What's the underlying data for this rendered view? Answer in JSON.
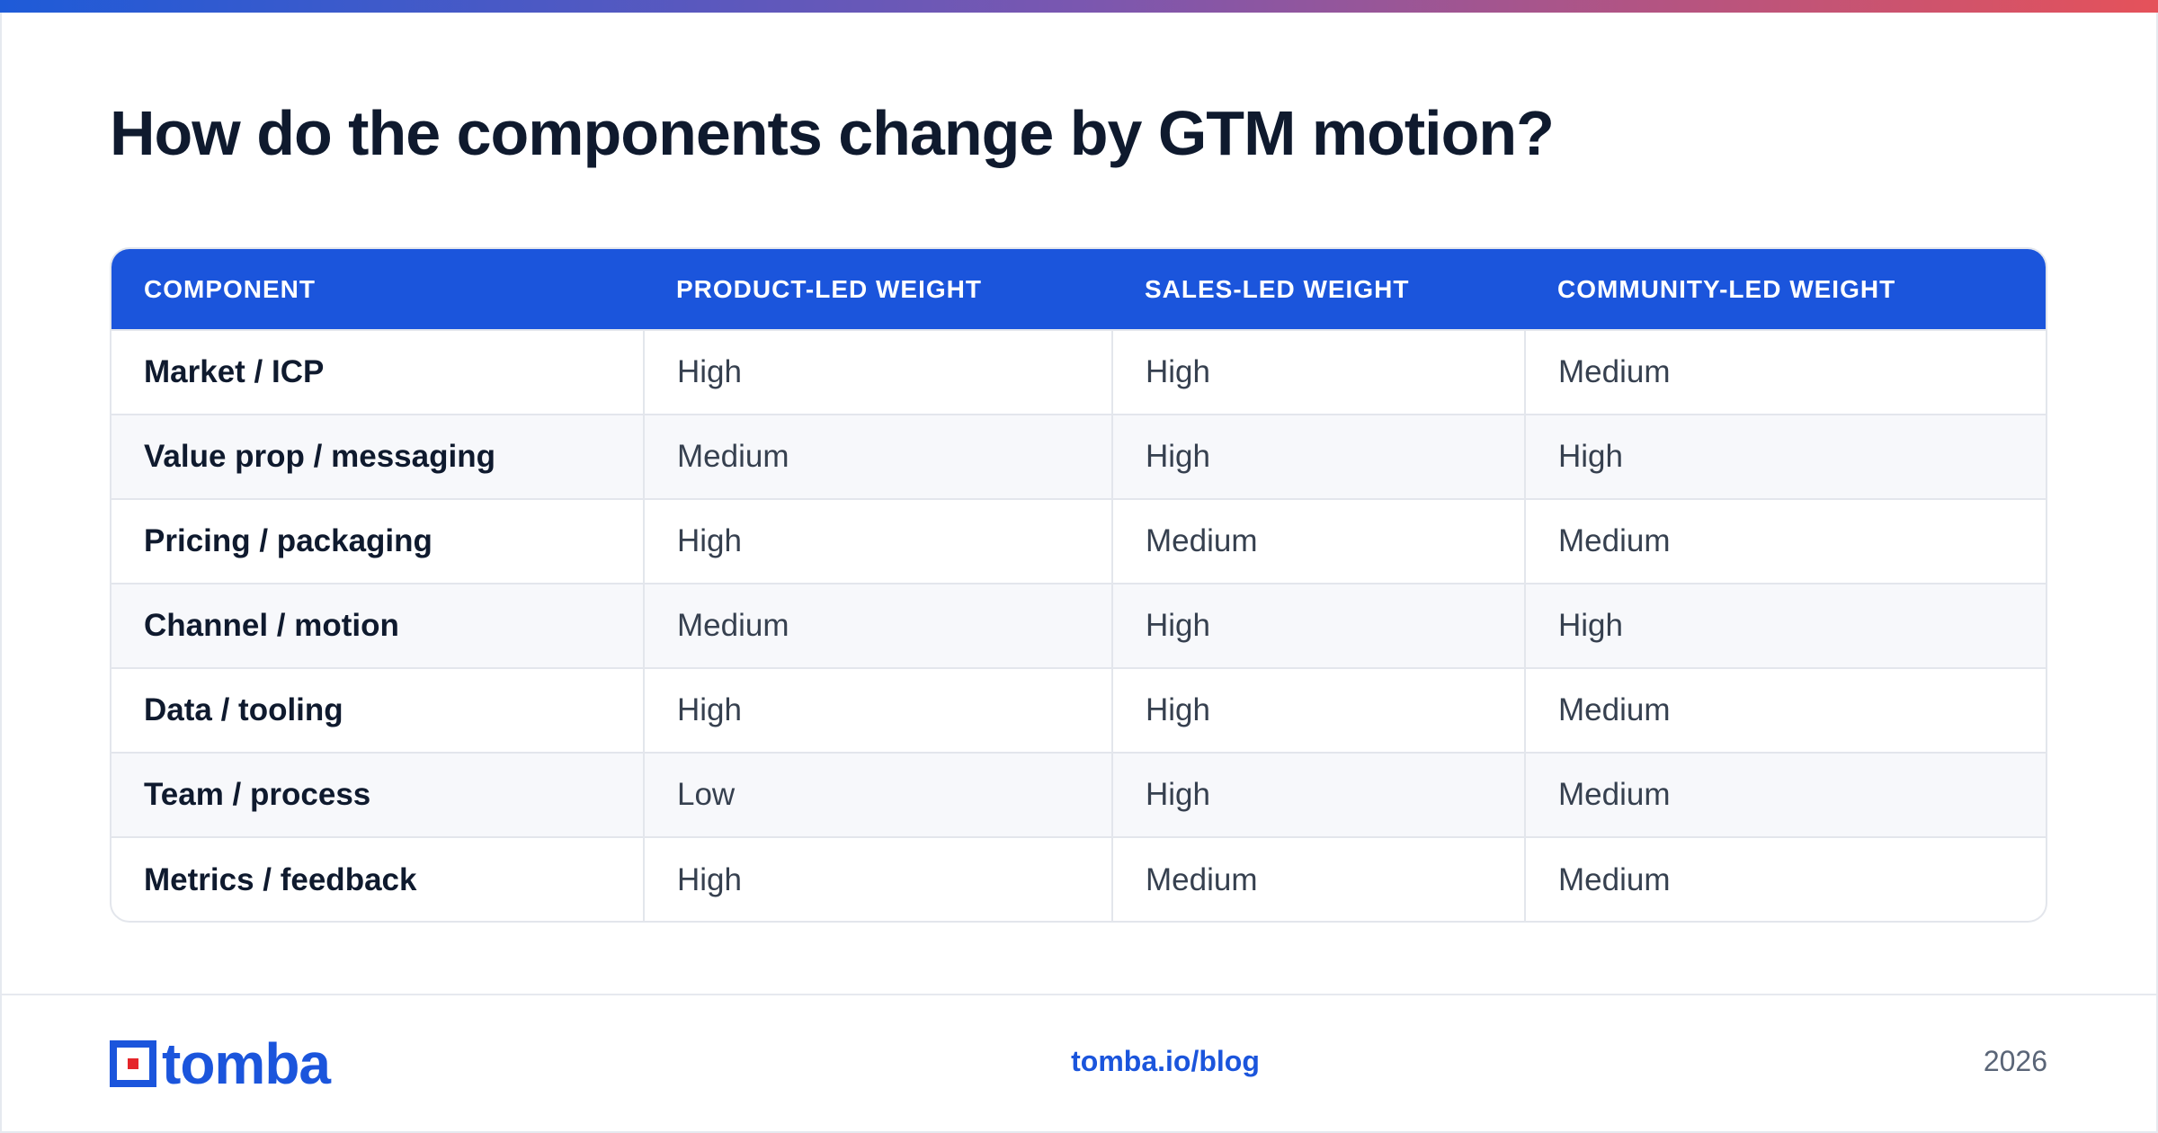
{
  "title": "How do the components change by GTM motion?",
  "table": {
    "headers": [
      "COMPONENT",
      "PRODUCT-LED WEIGHT",
      "SALES-LED WEIGHT",
      "COMMUNITY-LED WEIGHT"
    ],
    "rows": [
      [
        "Market / ICP",
        "High",
        "High",
        "Medium"
      ],
      [
        "Value prop / messaging",
        "Medium",
        "High",
        "High"
      ],
      [
        "Pricing / packaging",
        "High",
        "Medium",
        "Medium"
      ],
      [
        "Channel / motion",
        "Medium",
        "High",
        "High"
      ],
      [
        "Data / tooling",
        "High",
        "High",
        "Medium"
      ],
      [
        "Team / process",
        "Low",
        "High",
        "Medium"
      ],
      [
        "Metrics / feedback",
        "High",
        "Medium",
        "Medium"
      ]
    ]
  },
  "footer": {
    "logo_text": "tomba",
    "link": "tomba.io/blog",
    "year": "2026"
  },
  "colors": {
    "accent": "#1b55dc",
    "logo_square_accent": "#e5252a",
    "gradient_start": "#1e5bd8",
    "gradient_end": "#e5525a"
  },
  "icons": {
    "logo_mark": "tomba-logo-icon"
  }
}
